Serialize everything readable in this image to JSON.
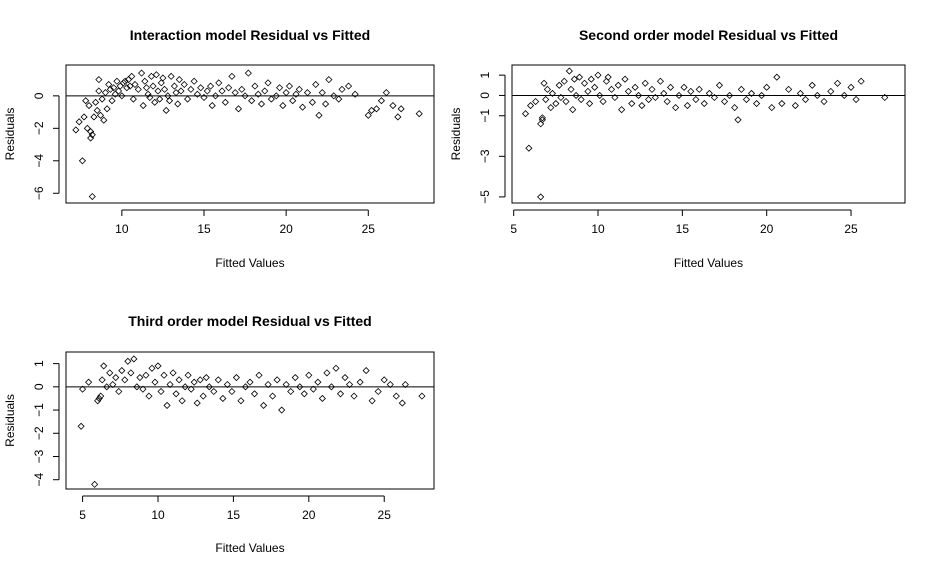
{
  "chart_data": [
    {
      "type": "scatter",
      "title": "Interaction model Residual vs Fitted",
      "xlabel": "Fitted Values",
      "ylabel": "Residuals",
      "xlim": [
        6.6,
        29
      ],
      "ylim": [
        -6.6,
        1.9
      ],
      "xticks": [
        10,
        15,
        20,
        25
      ],
      "yticks": [
        0,
        -2,
        -4,
        -6
      ],
      "hline": 0,
      "points": [
        [
          7.2,
          -2.1
        ],
        [
          7.4,
          -1.6
        ],
        [
          7.6,
          -4.0
        ],
        [
          7.7,
          -1.3
        ],
        [
          7.8,
          -0.3
        ],
        [
          7.9,
          -2.0
        ],
        [
          8.0,
          -0.6
        ],
        [
          8.1,
          -2.2
        ],
        [
          8.1,
          -2.6
        ],
        [
          8.2,
          -2.4
        ],
        [
          8.2,
          -6.2
        ],
        [
          8.3,
          -1.3
        ],
        [
          8.4,
          -0.4
        ],
        [
          8.5,
          -0.9
        ],
        [
          8.6,
          1.0
        ],
        [
          8.6,
          0.3
        ],
        [
          8.7,
          -1.2
        ],
        [
          8.8,
          -0.2
        ],
        [
          8.9,
          -1.5
        ],
        [
          9.0,
          0.2
        ],
        [
          9.1,
          -0.8
        ],
        [
          9.2,
          0.7
        ],
        [
          9.3,
          0.4
        ],
        [
          9.4,
          -0.3
        ],
        [
          9.5,
          0.5
        ],
        [
          9.6,
          0.1
        ],
        [
          9.7,
          0.9
        ],
        [
          9.8,
          0.3
        ],
        [
          9.9,
          0.6
        ],
        [
          10.0,
          0.0
        ],
        [
          10.1,
          0.8
        ],
        [
          10.2,
          0.9
        ],
        [
          10.3,
          0.5
        ],
        [
          10.4,
          1.0
        ],
        [
          10.5,
          0.6
        ],
        [
          10.6,
          1.2
        ],
        [
          10.7,
          -0.2
        ],
        [
          10.8,
          0.7
        ],
        [
          11.0,
          0.4
        ],
        [
          11.2,
          1.4
        ],
        [
          11.3,
          -0.6
        ],
        [
          11.4,
          0.9
        ],
        [
          11.5,
          0.5
        ],
        [
          11.6,
          0.1
        ],
        [
          11.7,
          -0.1
        ],
        [
          11.8,
          1.2
        ],
        [
          11.9,
          0.6
        ],
        [
          12.0,
          -0.4
        ],
        [
          12.1,
          1.3
        ],
        [
          12.2,
          0.3
        ],
        [
          12.3,
          -0.2
        ],
        [
          12.4,
          0.8
        ],
        [
          12.5,
          1.1
        ],
        [
          12.6,
          0.4
        ],
        [
          12.7,
          -0.9
        ],
        [
          12.8,
          0.0
        ],
        [
          12.9,
          -0.3
        ],
        [
          13.0,
          1.2
        ],
        [
          13.2,
          0.6
        ],
        [
          13.3,
          0.2
        ],
        [
          13.4,
          -0.5
        ],
        [
          13.5,
          1.0
        ],
        [
          13.6,
          0.3
        ],
        [
          13.8,
          0.7
        ],
        [
          14.0,
          -0.2
        ],
        [
          14.2,
          0.4
        ],
        [
          14.4,
          0.9
        ],
        [
          14.6,
          0.1
        ],
        [
          14.8,
          0.5
        ],
        [
          15.0,
          -0.1
        ],
        [
          15.2,
          0.3
        ],
        [
          15.4,
          0.6
        ],
        [
          15.5,
          -0.6
        ],
        [
          15.7,
          0.0
        ],
        [
          15.9,
          0.8
        ],
        [
          16.1,
          0.3
        ],
        [
          16.3,
          -0.4
        ],
        [
          16.5,
          0.5
        ],
        [
          16.7,
          1.2
        ],
        [
          16.9,
          0.2
        ],
        [
          17.1,
          -0.8
        ],
        [
          17.3,
          0.4
        ],
        [
          17.5,
          0.0
        ],
        [
          17.7,
          1.4
        ],
        [
          17.9,
          -0.3
        ],
        [
          18.1,
          0.6
        ],
        [
          18.3,
          0.1
        ],
        [
          18.5,
          -0.5
        ],
        [
          18.7,
          0.3
        ],
        [
          18.9,
          0.8
        ],
        [
          19.1,
          -0.2
        ],
        [
          19.4,
          0.0
        ],
        [
          19.6,
          0.5
        ],
        [
          19.8,
          -0.6
        ],
        [
          20.0,
          0.2
        ],
        [
          20.2,
          0.6
        ],
        [
          20.4,
          -0.3
        ],
        [
          20.6,
          0.1
        ],
        [
          20.8,
          0.4
        ],
        [
          21.0,
          -0.7
        ],
        [
          21.3,
          0.2
        ],
        [
          21.6,
          -0.4
        ],
        [
          21.8,
          0.7
        ],
        [
          22.0,
          -1.2
        ],
        [
          22.2,
          0.2
        ],
        [
          22.4,
          -0.5
        ],
        [
          22.6,
          1.0
        ],
        [
          22.9,
          0.0
        ],
        [
          23.2,
          -0.2
        ],
        [
          23.4,
          0.4
        ],
        [
          23.8,
          0.6
        ],
        [
          24.2,
          0.1
        ],
        [
          25.0,
          -1.2
        ],
        [
          25.2,
          -0.9
        ],
        [
          25.5,
          -0.8
        ],
        [
          25.8,
          -0.3
        ],
        [
          26.1,
          0.2
        ],
        [
          26.5,
          -0.6
        ],
        [
          26.8,
          -1.3
        ],
        [
          27.0,
          -0.8
        ],
        [
          28.1,
          -1.1
        ]
      ]
    },
    {
      "type": "scatter",
      "title": "Second order model Residual vs Fitted",
      "xlabel": "Fitted Values",
      "ylabel": "Residuals",
      "xlim": [
        4.9,
        28.2
      ],
      "ylim": [
        -5.3,
        1.5
      ],
      "xticks": [
        5,
        10,
        15,
        20,
        25
      ],
      "yticks": [
        1,
        0,
        -1,
        -3,
        -5
      ],
      "hline": 0,
      "points": [
        [
          5.7,
          -0.9
        ],
        [
          5.9,
          -2.6
        ],
        [
          6.0,
          -0.5
        ],
        [
          6.3,
          -0.3
        ],
        [
          6.6,
          -1.4
        ],
        [
          6.6,
          -5.0
        ],
        [
          6.7,
          -1.1
        ],
        [
          6.7,
          -1.2
        ],
        [
          6.8,
          0.6
        ],
        [
          6.9,
          -0.2
        ],
        [
          7.0,
          0.3
        ],
        [
          7.2,
          -0.6
        ],
        [
          7.3,
          0.1
        ],
        [
          7.5,
          -0.4
        ],
        [
          7.7,
          0.5
        ],
        [
          7.8,
          -0.1
        ],
        [
          8.0,
          0.7
        ],
        [
          8.1,
          -0.3
        ],
        [
          8.3,
          1.2
        ],
        [
          8.4,
          0.3
        ],
        [
          8.5,
          -0.7
        ],
        [
          8.6,
          0.8
        ],
        [
          8.7,
          0.0
        ],
        [
          8.9,
          0.9
        ],
        [
          9.0,
          -0.2
        ],
        [
          9.2,
          0.6
        ],
        [
          9.4,
          0.2
        ],
        [
          9.5,
          -0.4
        ],
        [
          9.6,
          0.8
        ],
        [
          9.8,
          0.4
        ],
        [
          10.0,
          1.0
        ],
        [
          10.1,
          0.0
        ],
        [
          10.3,
          -0.3
        ],
        [
          10.5,
          0.7
        ],
        [
          10.6,
          0.9
        ],
        [
          10.8,
          0.3
        ],
        [
          11.0,
          -0.1
        ],
        [
          11.2,
          0.5
        ],
        [
          11.4,
          -0.7
        ],
        [
          11.6,
          0.8
        ],
        [
          11.8,
          0.2
        ],
        [
          12.0,
          -0.4
        ],
        [
          12.2,
          0.4
        ],
        [
          12.4,
          0.0
        ],
        [
          12.6,
          -0.5
        ],
        [
          12.8,
          0.6
        ],
        [
          13.0,
          -0.2
        ],
        [
          13.2,
          0.3
        ],
        [
          13.4,
          -0.1
        ],
        [
          13.7,
          0.7
        ],
        [
          13.9,
          0.1
        ],
        [
          14.1,
          -0.3
        ],
        [
          14.3,
          0.4
        ],
        [
          14.6,
          -0.6
        ],
        [
          14.8,
          0.0
        ],
        [
          15.1,
          0.4
        ],
        [
          15.3,
          -0.5
        ],
        [
          15.5,
          0.2
        ],
        [
          15.8,
          -0.2
        ],
        [
          16.0,
          0.3
        ],
        [
          16.3,
          -0.4
        ],
        [
          16.6,
          0.1
        ],
        [
          16.9,
          -0.1
        ],
        [
          17.2,
          0.5
        ],
        [
          17.5,
          -0.3
        ],
        [
          17.8,
          0.0
        ],
        [
          18.1,
          -0.6
        ],
        [
          18.3,
          -1.2
        ],
        [
          18.5,
          0.3
        ],
        [
          18.8,
          -0.2
        ],
        [
          19.1,
          0.1
        ],
        [
          19.4,
          -0.4
        ],
        [
          19.7,
          0.0
        ],
        [
          20.0,
          0.4
        ],
        [
          20.3,
          -0.6
        ],
        [
          20.6,
          0.9
        ],
        [
          20.9,
          -0.4
        ],
        [
          21.3,
          0.3
        ],
        [
          21.7,
          -0.5
        ],
        [
          22.0,
          0.1
        ],
        [
          22.3,
          -0.2
        ],
        [
          22.7,
          0.5
        ],
        [
          23.0,
          0.0
        ],
        [
          23.4,
          -0.3
        ],
        [
          23.8,
          0.2
        ],
        [
          24.2,
          0.6
        ],
        [
          24.6,
          0.0
        ],
        [
          25.0,
          0.4
        ],
        [
          25.3,
          -0.2
        ],
        [
          25.6,
          0.7
        ],
        [
          27.0,
          -0.1
        ]
      ]
    },
    {
      "type": "scatter",
      "title": "Third order model Residual vs Fitted",
      "xlabel": "Fitted Values",
      "ylabel": "Residuals",
      "xlim": [
        3.9,
        28.3
      ],
      "ylim": [
        -4.4,
        1.5
      ],
      "xticks": [
        5,
        10,
        15,
        20,
        25
      ],
      "yticks": [
        1,
        0,
        -1,
        -2,
        -3,
        -4
      ],
      "hline": 0,
      "points": [
        [
          4.9,
          -1.7
        ],
        [
          5.0,
          -0.1
        ],
        [
          5.4,
          0.2
        ],
        [
          5.8,
          -4.2
        ],
        [
          6.0,
          -0.6
        ],
        [
          6.1,
          -0.5
        ],
        [
          6.2,
          -0.4
        ],
        [
          6.3,
          0.3
        ],
        [
          6.4,
          0.9
        ],
        [
          6.6,
          0.0
        ],
        [
          6.8,
          0.6
        ],
        [
          7.0,
          0.1
        ],
        [
          7.2,
          0.4
        ],
        [
          7.4,
          -0.2
        ],
        [
          7.6,
          0.7
        ],
        [
          7.8,
          0.3
        ],
        [
          8.0,
          1.1
        ],
        [
          8.2,
          0.6
        ],
        [
          8.4,
          1.2
        ],
        [
          8.6,
          0.0
        ],
        [
          8.8,
          0.4
        ],
        [
          9.0,
          -0.1
        ],
        [
          9.2,
          0.5
        ],
        [
          9.4,
          -0.4
        ],
        [
          9.6,
          0.8
        ],
        [
          9.8,
          0.2
        ],
        [
          10.0,
          0.9
        ],
        [
          10.2,
          -0.2
        ],
        [
          10.4,
          0.5
        ],
        [
          10.6,
          -0.8
        ],
        [
          10.8,
          0.1
        ],
        [
          11.0,
          0.6
        ],
        [
          11.2,
          -0.3
        ],
        [
          11.4,
          0.3
        ],
        [
          11.6,
          -0.6
        ],
        [
          11.8,
          0.0
        ],
        [
          12.0,
          0.5
        ],
        [
          12.2,
          -0.1
        ],
        [
          12.4,
          0.2
        ],
        [
          12.6,
          -0.7
        ],
        [
          12.8,
          0.3
        ],
        [
          13.0,
          -0.4
        ],
        [
          13.2,
          0.4
        ],
        [
          13.4,
          0.0
        ],
        [
          13.7,
          -0.2
        ],
        [
          14.0,
          0.3
        ],
        [
          14.3,
          -0.5
        ],
        [
          14.6,
          0.1
        ],
        [
          14.9,
          -0.2
        ],
        [
          15.2,
          0.4
        ],
        [
          15.5,
          -0.6
        ],
        [
          15.8,
          0.0
        ],
        [
          16.1,
          0.2
        ],
        [
          16.4,
          -0.3
        ],
        [
          16.7,
          0.5
        ],
        [
          17.0,
          -0.8
        ],
        [
          17.3,
          0.1
        ],
        [
          17.6,
          -0.4
        ],
        [
          17.9,
          0.3
        ],
        [
          18.2,
          -1.0
        ],
        [
          18.5,
          0.1
        ],
        [
          18.8,
          -0.2
        ],
        [
          19.1,
          0.4
        ],
        [
          19.4,
          0.0
        ],
        [
          19.7,
          -0.3
        ],
        [
          20.0,
          0.5
        ],
        [
          20.3,
          -0.1
        ],
        [
          20.6,
          0.2
        ],
        [
          20.9,
          -0.5
        ],
        [
          21.2,
          0.6
        ],
        [
          21.5,
          0.0
        ],
        [
          21.8,
          0.8
        ],
        [
          22.1,
          -0.3
        ],
        [
          22.4,
          0.4
        ],
        [
          22.7,
          0.1
        ],
        [
          23.0,
          -0.4
        ],
        [
          23.4,
          0.2
        ],
        [
          23.8,
          0.7
        ],
        [
          24.2,
          -0.6
        ],
        [
          24.6,
          -0.2
        ],
        [
          25.0,
          0.3
        ],
        [
          25.4,
          0.1
        ],
        [
          25.8,
          -0.4
        ],
        [
          26.2,
          -0.7
        ],
        [
          26.4,
          0.1
        ],
        [
          27.5,
          -0.4
        ]
      ]
    }
  ]
}
